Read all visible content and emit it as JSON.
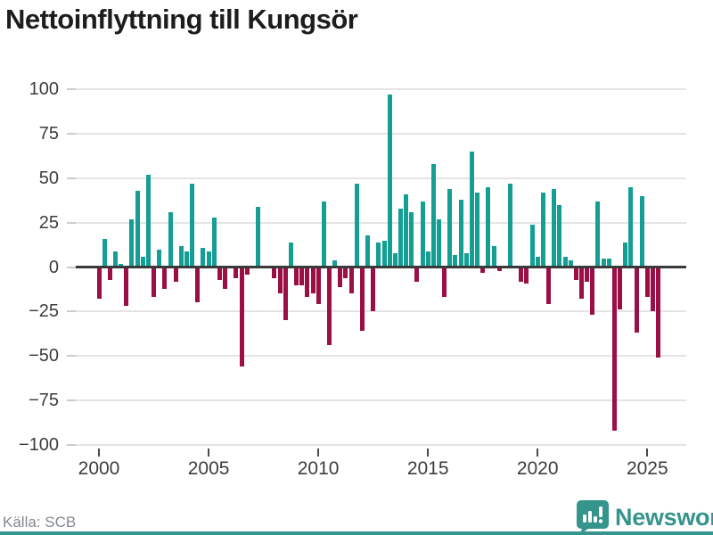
{
  "title": "Nettoinflyttning till Kungsör",
  "source": "Källa: SCB",
  "branding": {
    "name": "Newsworthy",
    "logo_icon": "bar-chart-speech-bubble",
    "color": "#35948c"
  },
  "chart_data": {
    "type": "bar",
    "title": "Nettoinflyttning till Kungsör",
    "xlabel": "",
    "ylabel": "",
    "ylim": [
      -100,
      100
    ],
    "yticks": [
      100,
      75,
      50,
      25,
      0,
      -25,
      -50,
      -75,
      -100
    ],
    "xticks": [
      "2000",
      "2005",
      "2010",
      "2015",
      "2020",
      "2025"
    ],
    "grid": true,
    "legend": "none",
    "colors": {
      "positive": "#149e94",
      "negative": "#9b0f45"
    },
    "categories": [
      "2000-Q1",
      "2000-Q2",
      "2000-Q3",
      "2000-Q4",
      "2001-Q1",
      "2001-Q2",
      "2001-Q3",
      "2001-Q4",
      "2002-Q1",
      "2002-Q2",
      "2002-Q3",
      "2002-Q4",
      "2003-Q1",
      "2003-Q2",
      "2003-Q3",
      "2003-Q4",
      "2004-Q1",
      "2004-Q2",
      "2004-Q3",
      "2004-Q4",
      "2005-Q1",
      "2005-Q2",
      "2005-Q3",
      "2005-Q4",
      "2006-Q1",
      "2006-Q2",
      "2006-Q3",
      "2006-Q4",
      "2007-Q1",
      "2007-Q2",
      "2007-Q3",
      "2007-Q4",
      "2008-Q1",
      "2008-Q2",
      "2008-Q3",
      "2008-Q4",
      "2009-Q1",
      "2009-Q2",
      "2009-Q3",
      "2009-Q4",
      "2010-Q1",
      "2010-Q2",
      "2010-Q3",
      "2010-Q4",
      "2011-Q1",
      "2011-Q2",
      "2011-Q3",
      "2011-Q4",
      "2012-Q1",
      "2012-Q2",
      "2012-Q3",
      "2012-Q4",
      "2013-Q1",
      "2013-Q2",
      "2013-Q3",
      "2013-Q4",
      "2014-Q1",
      "2014-Q2",
      "2014-Q3",
      "2014-Q4",
      "2015-Q1",
      "2015-Q2",
      "2015-Q3",
      "2015-Q4",
      "2016-Q1",
      "2016-Q2",
      "2016-Q3",
      "2016-Q4",
      "2017-Q1",
      "2017-Q2",
      "2017-Q3",
      "2017-Q4",
      "2018-Q1",
      "2018-Q2",
      "2018-Q3",
      "2018-Q4",
      "2019-Q1",
      "2019-Q2",
      "2019-Q3",
      "2019-Q4",
      "2020-Q1",
      "2020-Q2",
      "2020-Q3",
      "2020-Q4",
      "2021-Q1",
      "2021-Q2",
      "2021-Q3",
      "2021-Q4",
      "2022-Q1",
      "2022-Q2",
      "2022-Q3",
      "2022-Q4",
      "2023-Q1",
      "2023-Q2",
      "2023-Q3",
      "2023-Q4",
      "2024-Q1",
      "2024-Q2",
      "2024-Q3",
      "2024-Q4",
      "2025-Q1",
      "2025-Q2",
      "2025-Q3"
    ],
    "values": [
      -18,
      16,
      -7,
      9,
      2,
      -22,
      27,
      43,
      6,
      52,
      -17,
      10,
      -12,
      31,
      -8,
      12,
      9,
      47,
      -20,
      11,
      9,
      28,
      -7,
      -12,
      0,
      -6,
      -56,
      -4,
      0,
      34,
      0,
      1,
      -6,
      -15,
      -30,
      14,
      -10,
      -10,
      -17,
      -15,
      -21,
      37,
      -44,
      4,
      -11,
      -6,
      -15,
      47,
      -36,
      18,
      -25,
      14,
      15,
      97,
      8,
      33,
      41,
      31,
      -8,
      37,
      9,
      58,
      27,
      -17,
      44,
      7,
      38,
      8,
      65,
      42,
      -3,
      45,
      12,
      -2,
      1,
      47,
      0,
      -8,
      -9,
      24,
      6,
      42,
      -21,
      44,
      35,
      6,
      4,
      -7,
      -18,
      -8,
      -27,
      37,
      5,
      5,
      -92,
      -24,
      14,
      45,
      -37,
      40,
      -17,
      -25,
      -51
    ]
  }
}
